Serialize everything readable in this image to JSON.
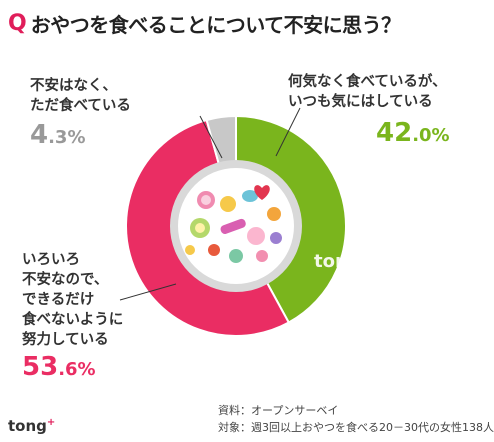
{
  "title": {
    "q_mark": "Q",
    "text": "おやつを食べることについて不安に思う？"
  },
  "chart_data": {
    "type": "pie",
    "donut": true,
    "slices": [
      {
        "label_lines": [
          "何気なく食べているが、",
          "いつも気にはしている"
        ],
        "value": 42.0,
        "pct_int": "42",
        "pct_dec": ".0%",
        "color": "#7ab51d"
      },
      {
        "label_lines": [
          "いろいろ",
          "不安なので、",
          "できるだけ",
          "食べないように",
          "努力している"
        ],
        "value": 53.6,
        "pct_int": "53",
        "pct_dec": ".6%",
        "color": "#ea2d63"
      },
      {
        "label_lines": [
          "不安はなく、",
          "ただ食べている"
        ],
        "value": 4.3,
        "pct_int": "4",
        "pct_dec": ".3%",
        "color": "#c8c8c8"
      }
    ]
  },
  "notes": {
    "source": "資料：オープンサーベイ",
    "target": "対象：週3回以上おやつを食べる20－30代の女性138人"
  },
  "logo": {
    "text": "tong",
    "plus": "+"
  }
}
